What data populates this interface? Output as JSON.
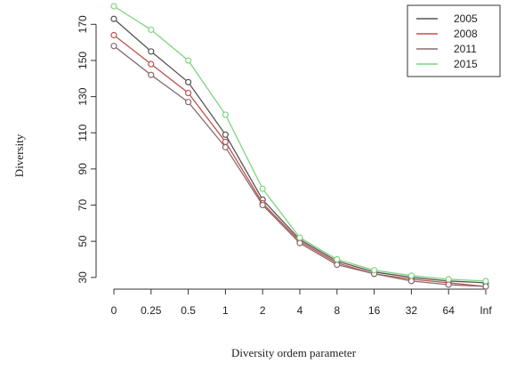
{
  "chart_data": {
    "type": "line",
    "title": "",
    "xlabel": "Diversity ordem parameter",
    "ylabel": "Diversity",
    "categories": [
      "0",
      "0.25",
      "0.5",
      "1",
      "2",
      "4",
      "8",
      "16",
      "32",
      "64",
      "Inf"
    ],
    "yticks": [
      30,
      50,
      70,
      90,
      110,
      130,
      150,
      170
    ],
    "ylim": [
      25,
      180
    ],
    "grid": false,
    "legend_position": "top-right",
    "series": [
      {
        "name": "2005",
        "color": "#555555",
        "values": [
          173,
          155,
          138,
          109,
          73,
          51,
          39,
          33,
          30,
          28,
          27
        ]
      },
      {
        "name": "2008",
        "color": "#c0504d",
        "values": [
          164,
          148,
          132,
          105,
          71,
          50,
          38,
          32,
          29,
          27,
          25
        ]
      },
      {
        "name": "2011",
        "color": "#8b6b70",
        "values": [
          158,
          142,
          127,
          102,
          70,
          49,
          37,
          32,
          28,
          26,
          25
        ]
      },
      {
        "name": "2015",
        "color": "#7fd47f",
        "values": [
          180,
          167,
          150,
          120,
          79,
          52,
          40,
          34,
          31,
          29,
          28
        ]
      }
    ]
  }
}
